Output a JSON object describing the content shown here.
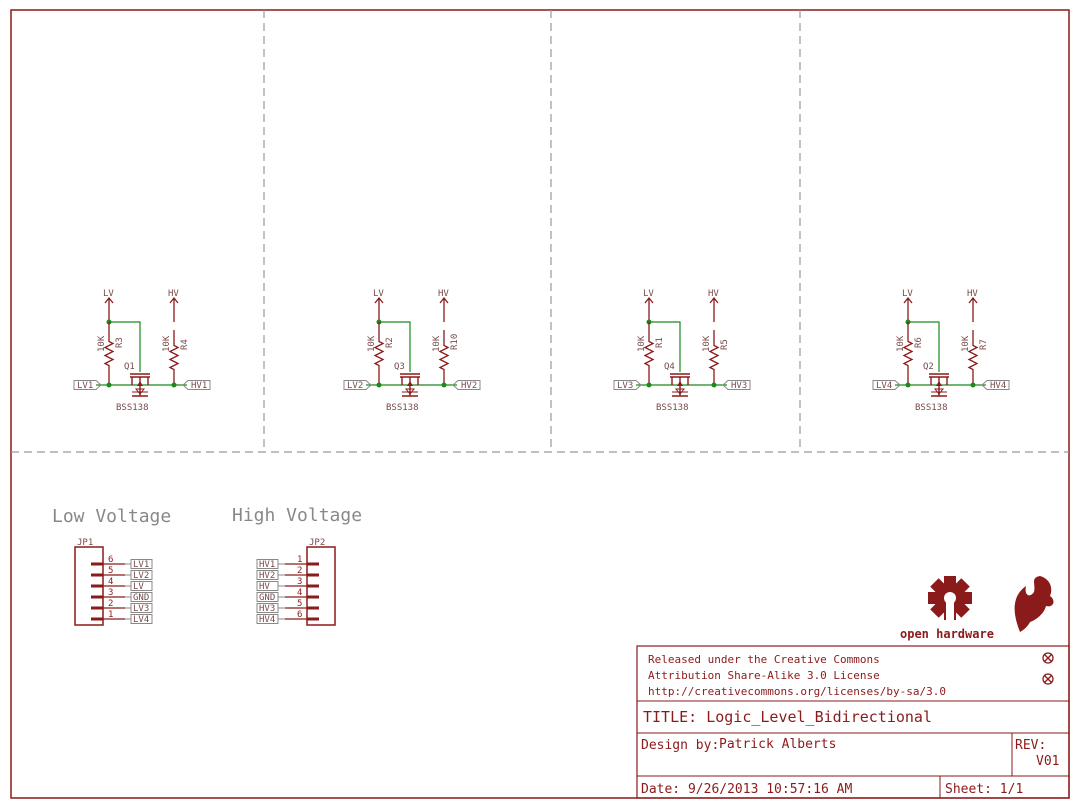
{
  "schematic": {
    "sections": [
      {
        "lv": "LV",
        "hv": "HV",
        "r_left": "R3",
        "r_right": "R4",
        "r_left_val": "10K",
        "r_right_val": "10K",
        "q": "Q1",
        "part": "BSS138",
        "in": "LV1",
        "out": "HV1"
      },
      {
        "lv": "LV",
        "hv": "HV",
        "r_left": "R2",
        "r_right": "R10",
        "r_left_val": "10K",
        "r_right_val": "10K",
        "q": "Q3",
        "part": "BSS138",
        "in": "LV2",
        "out": "HV2"
      },
      {
        "lv": "LV",
        "hv": "HV",
        "r_left": "R1",
        "r_right": "R5",
        "r_left_val": "10K",
        "r_right_val": "10K",
        "q": "Q4",
        "part": "BSS138",
        "in": "LV3",
        "out": "HV3"
      },
      {
        "lv": "LV",
        "hv": "HV",
        "r_left": "R6",
        "r_right": "R7",
        "r_left_val": "10K",
        "r_right_val": "10K",
        "q": "Q2",
        "part": "BSS138",
        "in": "LV4",
        "out": "HV4"
      }
    ],
    "connectors": {
      "low": {
        "heading": "Low Voltage",
        "name": "JP1",
        "pins": [
          {
            "num": "6",
            "net": "LV1"
          },
          {
            "num": "5",
            "net": "LV2"
          },
          {
            "num": "4",
            "net": "LV"
          },
          {
            "num": "3",
            "net": "GND"
          },
          {
            "num": "2",
            "net": "LV3"
          },
          {
            "num": "1",
            "net": "LV4"
          }
        ]
      },
      "high": {
        "heading": "High Voltage",
        "name": "JP2",
        "pins": [
          {
            "num": "1",
            "net": "HV1"
          },
          {
            "num": "2",
            "net": "HV2"
          },
          {
            "num": "3",
            "net": "HV"
          },
          {
            "num": "4",
            "net": "GND"
          },
          {
            "num": "5",
            "net": "HV3"
          },
          {
            "num": "6",
            "net": "HV4"
          }
        ]
      }
    }
  },
  "logo": {
    "text": "open hardware"
  },
  "title_block": {
    "license_line1": "Released under the Creative Commons",
    "license_line2": "Attribution Share-Alike 3.0 License",
    "license_url": "http://creativecommons.org/licenses/by-sa/3.0",
    "title": "TITLE: Logic_Level_Bidirectional",
    "design_label": "Design by:",
    "designer": "Patrick Alberts",
    "rev_label": "REV:",
    "rev": "V01",
    "date": "Date: 9/26/2013 10:57:16 AM",
    "sheet": "Sheet: 1/1"
  },
  "colors": {
    "frame": "#8b1a1a",
    "net": "#1a8a1a",
    "grid": "#999999"
  }
}
